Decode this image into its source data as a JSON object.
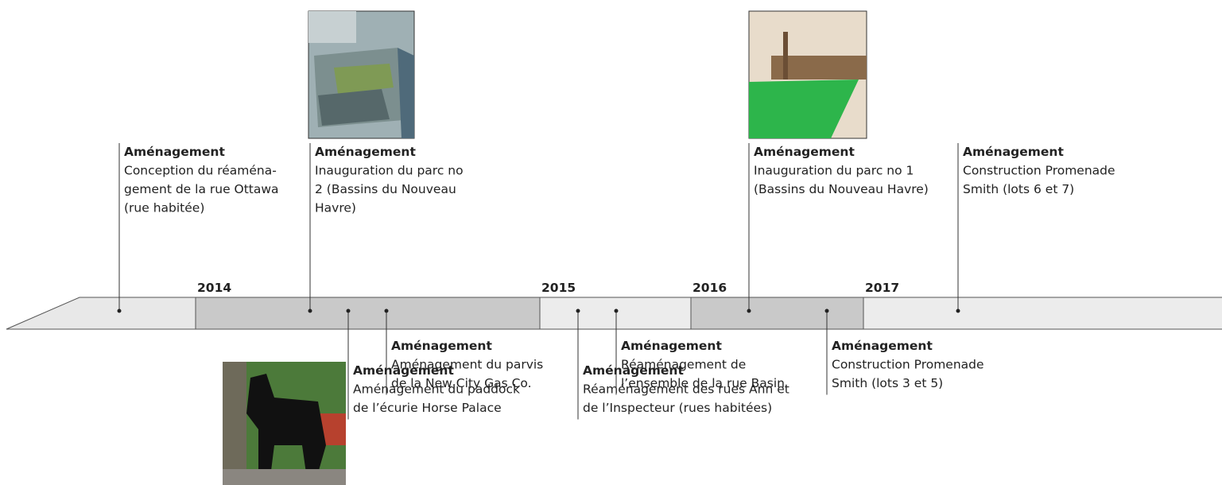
{
  "years": [
    "2014",
    "2015",
    "2016",
    "2017"
  ],
  "events": [
    {
      "category": "Aménagement",
      "lines": [
        "Conception du réaména-",
        "gement de la rue Ottawa",
        "(rue habitée)"
      ]
    },
    {
      "category": "Aménagement",
      "lines": [
        "Inauguration du parc no",
        "2 (Bassins du Nouveau",
        "Havre)"
      ]
    },
    {
      "category": "Aménagement",
      "lines": [
        "Aménagement du paddock",
        "de l’écurie Horse Palace"
      ]
    },
    {
      "category": "Aménagement",
      "lines": [
        "Aménagement du parvis",
        "de la New City Gas Co."
      ]
    },
    {
      "category": "Aménagement",
      "lines": [
        "Réaménagement des rues Ann et",
        "de l’Inspecteur (rues habitées)"
      ]
    },
    {
      "category": "Aménagement",
      "lines": [
        "Réaménagement de",
        "l’ensemble de la rue Basin"
      ]
    },
    {
      "category": "Aménagement",
      "lines": [
        "Inauguration du parc no 1",
        "(Bassins du Nouveau Havre)"
      ]
    },
    {
      "category": "Aménagement",
      "lines": [
        "Construction Promenade",
        "Smith (lots 3 et 5)"
      ]
    },
    {
      "category": "Aménagement",
      "lines": [
        "Construction Promenade",
        "Smith (lots 6 et 7)"
      ]
    }
  ]
}
